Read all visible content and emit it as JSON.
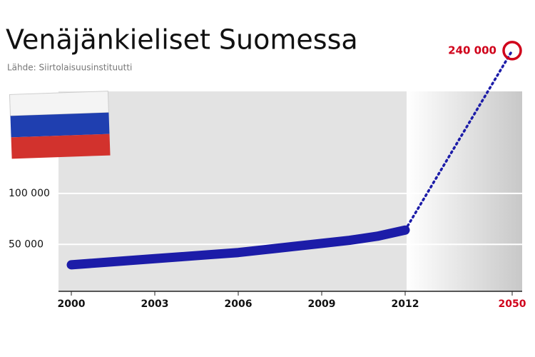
{
  "chart_data": {
    "type": "line",
    "title": "Venäjänkieliset Suomessa",
    "subtitle": "Lähde: Siirtolaisuusinstituutti",
    "x": [
      2000,
      2001,
      2002,
      2003,
      2004,
      2005,
      2006,
      2007,
      2008,
      2009,
      2010,
      2011,
      2012
    ],
    "series": [
      {
        "color": "#1c1ca8",
        "values": [
          30000,
          32000,
          34000,
          36000,
          38000,
          40000,
          42000,
          45000,
          48000,
          51000,
          54000,
          58000,
          64000
        ]
      }
    ],
    "projection": {
      "x": [
        2012,
        2050
      ],
      "values": [
        64000,
        240000
      ],
      "value_labels": [
        null,
        "240 000"
      ],
      "color": "#1c1ca8",
      "label_color": "#d0021b"
    },
    "xlim": [
      2000,
      2050
    ],
    "xticks": [
      2000,
      2003,
      2006,
      2009,
      2012,
      {
        "value": 2050,
        "label": "2050",
        "color": "#d0021b"
      }
    ],
    "ylim": [
      4000,
      200000
    ],
    "yticks": [
      {
        "value": 50000,
        "label": "50 000"
      },
      {
        "value": 100000,
        "label": "100 000"
      }
    ],
    "grid": true
  }
}
